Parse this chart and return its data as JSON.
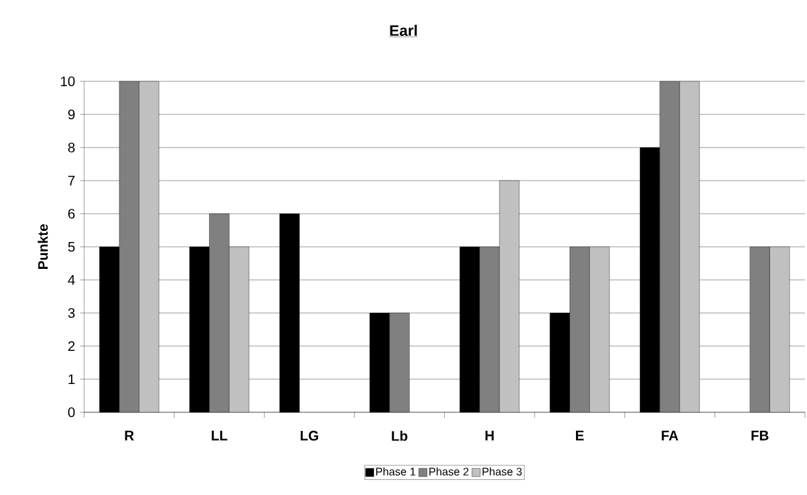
{
  "chart_data": {
    "type": "bar",
    "title": "Earl",
    "ylabel": "Punkte",
    "categories": [
      "R",
      "LL",
      "LG",
      "Lb",
      "H",
      "E",
      "FA",
      "FB"
    ],
    "series": [
      {
        "name": "Phase 1",
        "color": "#000000",
        "values": [
          5,
          5,
          6,
          3,
          5,
          3,
          8,
          null
        ]
      },
      {
        "name": "Phase 2",
        "color": "#808080",
        "values": [
          10,
          6,
          null,
          3,
          5,
          5,
          10,
          5
        ]
      },
      {
        "name": "Phase 3",
        "color": "#c0c0c0",
        "values": [
          10,
          5,
          null,
          null,
          7,
          5,
          10,
          5
        ]
      }
    ],
    "ylim": [
      0,
      10
    ],
    "yticks": [
      0,
      1,
      2,
      3,
      4,
      5,
      6,
      7,
      8,
      9,
      10
    ],
    "grid": "y",
    "legend": "bottom"
  }
}
